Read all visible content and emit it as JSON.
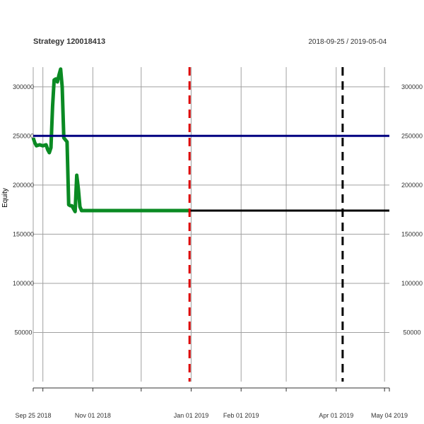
{
  "title": "Strategy 120018413",
  "date_range": "2018-09-25 / 2019-05-04",
  "chart_data": {
    "type": "line",
    "ylabel": "Equity",
    "ylim": [
      0,
      320000
    ],
    "y_ticks": [
      50000,
      100000,
      150000,
      200000,
      250000,
      300000
    ],
    "y_tick_labels_left": [
      "50000",
      "100000",
      "150000",
      "200000",
      "250000",
      "300000"
    ],
    "y_tick_labels_right": [
      "50000",
      "100000",
      "150000",
      "200000",
      "250000",
      "300000"
    ],
    "x_range": [
      "2018-09-25",
      "2019-05-04"
    ],
    "x_tick_labels": [
      {
        "date": "2018-09-25",
        "label": "Sep 25 2018"
      },
      {
        "date": "2018-11-01",
        "label": "Nov 01 2018"
      },
      {
        "date": "2019-01-01",
        "label": "Jan 01 2019"
      },
      {
        "date": "2019-02-01",
        "label": "Feb 01 2019"
      },
      {
        "date": "2019-04-01",
        "label": "Apr 01 2019"
      },
      {
        "date": "2019-05-04",
        "label": "May 04 2019"
      }
    ],
    "x_minor_gridlines": [
      "2018-10-01",
      "2018-11-01",
      "2018-12-01",
      "2019-01-01",
      "2019-02-01",
      "2019-03-01",
      "2019-04-01",
      "2019-05-01"
    ],
    "grid": true,
    "series": [
      {
        "color": "#0a8a23",
        "values": [
          [
            "2018-09-25",
            248000
          ],
          [
            "2018-09-26",
            243000
          ],
          [
            "2018-09-27",
            240000
          ],
          [
            "2018-09-29",
            241000
          ],
          [
            "2018-10-01",
            240000
          ],
          [
            "2018-10-03",
            241000
          ],
          [
            "2018-10-04",
            236000
          ],
          [
            "2018-10-05",
            233000
          ],
          [
            "2018-10-06",
            238000
          ],
          [
            "2018-10-07",
            280000
          ],
          [
            "2018-10-08",
            307000
          ],
          [
            "2018-10-09",
            308000
          ],
          [
            "2018-10-10",
            305000
          ],
          [
            "2018-10-11",
            312000
          ],
          [
            "2018-10-12",
            318000
          ],
          [
            "2018-10-13",
            300000
          ],
          [
            "2018-10-14",
            248000
          ],
          [
            "2018-10-15",
            246000
          ],
          [
            "2018-10-16",
            244000
          ],
          [
            "2018-10-17",
            180000
          ],
          [
            "2018-10-18",
            179000
          ],
          [
            "2018-10-19",
            179000
          ],
          [
            "2018-10-20",
            176000
          ],
          [
            "2018-10-21",
            173000
          ],
          [
            "2018-10-22",
            210000
          ],
          [
            "2018-10-23",
            196000
          ],
          [
            "2018-10-24",
            178000
          ],
          [
            "2018-10-25",
            174000
          ],
          [
            "2018-12-31",
            174000
          ]
        ]
      },
      {
        "color": "#000000",
        "values": [
          [
            "2018-12-31",
            174000
          ],
          [
            "2019-05-04",
            174000
          ]
        ]
      },
      {
        "color": "#000080",
        "values": [
          [
            "2018-09-25",
            250000
          ],
          [
            "2019-05-04",
            250000
          ]
        ]
      }
    ],
    "vertical_markers": [
      {
        "date": "2018-12-31",
        "color": "#dd0000",
        "style": "dashed"
      },
      {
        "date": "2019-04-05",
        "color": "#000000",
        "style": "dashed"
      }
    ]
  }
}
